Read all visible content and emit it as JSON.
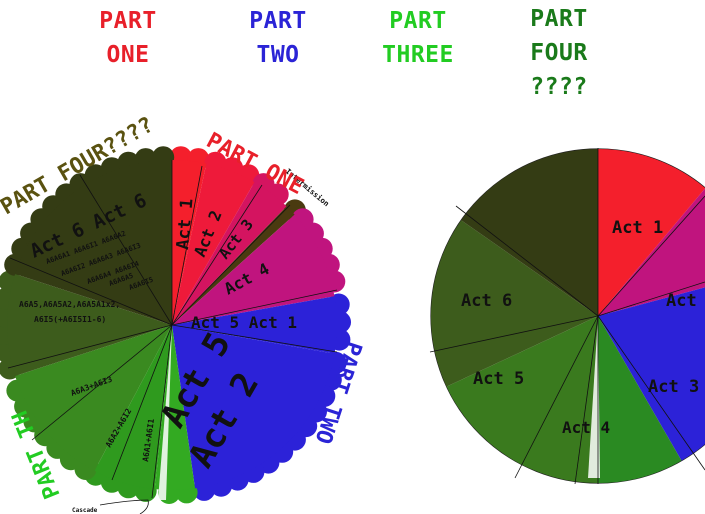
{
  "legend": [
    {
      "lines": [
        "PART",
        "ONE"
      ],
      "color": "#e8202a"
    },
    {
      "lines": [
        "PART",
        "TWO"
      ],
      "color": "#2b24d6"
    },
    {
      "lines": [
        "PART",
        "THREE"
      ],
      "color": "#22cc22"
    },
    {
      "lines": [
        "PART",
        "FOUR",
        "????"
      ],
      "color": "#1a7a1a"
    }
  ],
  "colors": {
    "part_one": "#f41f2c",
    "part_one_dark": "#c01530",
    "magenta": "#c0147e",
    "part_two": "#2c22d8",
    "part_two_light": "#3b30e8",
    "part_three": "#28b428",
    "part_three_dark": "#1e8c1e",
    "olive": "#3d5c1c",
    "olive_dark": "#2a3a12",
    "part_four_label": "#5a5210"
  },
  "left_pie": {
    "slices": [
      {
        "name": "slice-act1",
        "from": 0,
        "to": 12,
        "color": "#f41f2c"
      },
      {
        "name": "slice-act2",
        "from": 12,
        "to": 30,
        "color": "#ee1a3a"
      },
      {
        "name": "slice-act3",
        "from": 30,
        "to": 44,
        "color": "#d41460"
      },
      {
        "name": "slice-intermission",
        "from": 44,
        "to": 48,
        "color": "#4a3a10"
      },
      {
        "name": "slice-act4",
        "from": 48,
        "to": 80,
        "color": "#c0147e"
      },
      {
        "name": "slice-act5-act1",
        "from": 80,
        "to": 100,
        "color": "#2c22d8"
      },
      {
        "name": "slice-act5-act2",
        "from": 100,
        "to": 172,
        "color": "#2c22d8"
      },
      {
        "name": "slice-a6a1",
        "from": 172,
        "to": 186,
        "color": "#33aa22"
      },
      {
        "name": "slice-a6a2",
        "from": 186,
        "to": 208,
        "color": "#2f9a1e"
      },
      {
        "name": "slice-a6a3",
        "from": 208,
        "to": 252,
        "color": "#3a8a20"
      },
      {
        "name": "slice-a6a5",
        "from": 252,
        "to": 288,
        "color": "#3d5c1c"
      },
      {
        "name": "slice-act6",
        "from": 288,
        "to": 360,
        "color": "#343c14"
      }
    ],
    "labels": {
      "act1": "Act 1",
      "act2": "Act 2",
      "act3": "Act 3",
      "act4": "Act 4",
      "intermission": "Intermission",
      "act5_act1": "Act 5 Act 1",
      "act5": "Act 5",
      "act2_big": "Act 2",
      "a6a1": "A6A1+A6I1",
      "a6a2": "A6A2+A6I2",
      "a6a3": "A6A3+A6I3",
      "a6a5": "A6A5,A6A5A2,A6A5A1x2,",
      "a6a5b": "A6I5(+A6I5I1-6)",
      "act6_title": "Act 6 Act 6",
      "act6_sub1": "A6A6A1 A6A6I1 A6A6A2",
      "act6_sub2": "A6A6I2 A6A6A3 A6A6I3",
      "act6_sub3": "A6A6A4 A6A6I4",
      "act6_sub4": "A6A6A5",
      "act6_sub5": "A6A6I5",
      "cascade": "Cascade",
      "part_one_curved": "PART ONE",
      "part_two_curved": "PART TWO",
      "part_three_curved": "PART TH",
      "part_four_curved": "PART FOUR????"
    }
  },
  "right_pie": {
    "slices": [
      {
        "name": "slice-act1",
        "from": 0,
        "to": 40,
        "color": "#f41f2c"
      },
      {
        "name": "slice-act2",
        "from": 40,
        "to": 75,
        "color": "#c0147e"
      },
      {
        "name": "slice-act3",
        "from": 75,
        "to": 150,
        "color": "#2c22d8"
      },
      {
        "name": "slice-act4",
        "from": 150,
        "to": 180,
        "color": "#2a8a22"
      },
      {
        "name": "slice-act5",
        "from": 180,
        "to": 245,
        "color": "#3a7a1e"
      },
      {
        "name": "slice-act6",
        "from": 245,
        "to": 305,
        "color": "#3d5c1c"
      },
      {
        "name": "slice-act7",
        "from": 305,
        "to": 360,
        "color": "#343c14"
      }
    ],
    "labels": {
      "act1": "Act 1",
      "act_partial": "Act",
      "act3": "Act 3",
      "act4": "Act 4",
      "act5": "Act 5",
      "act6": "Act 6"
    }
  }
}
